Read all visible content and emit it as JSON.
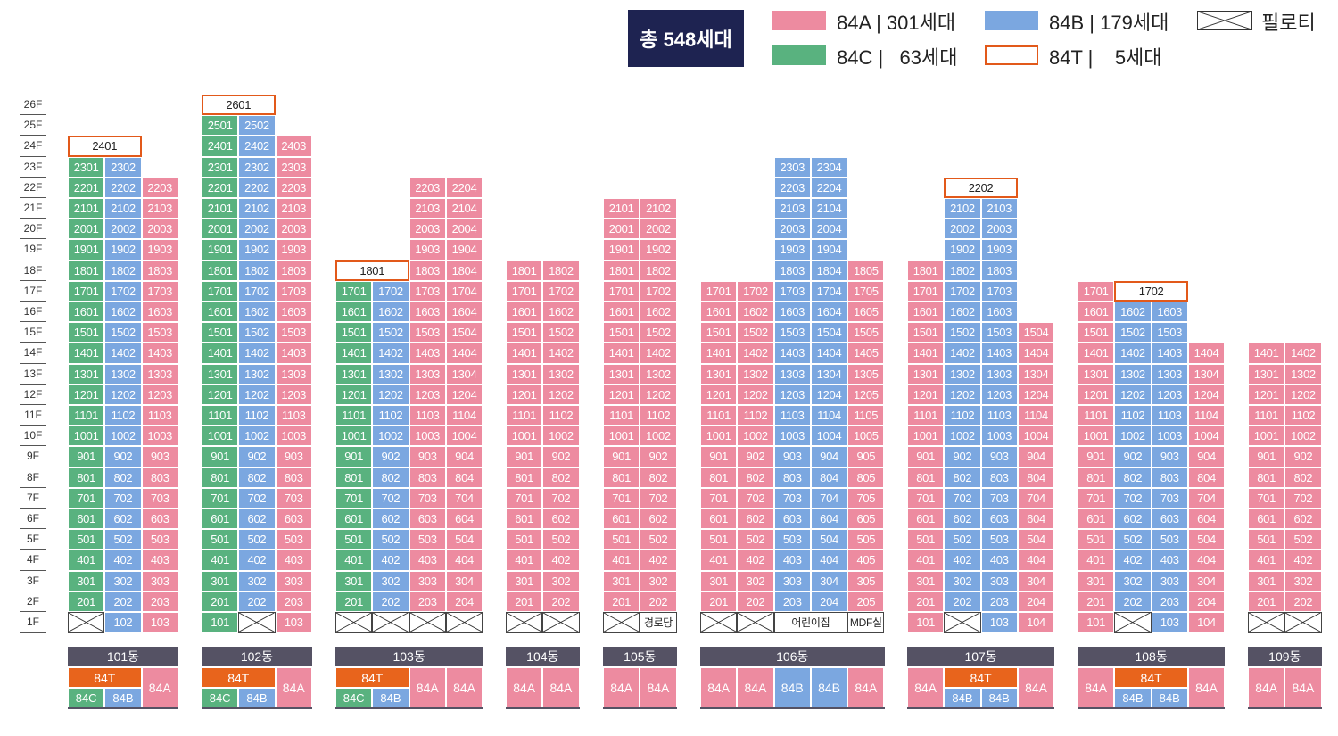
{
  "legend": {
    "total": "총 548세대",
    "items": [
      {
        "type": "84A",
        "sep": "|",
        "count": "301세대",
        "color": "#ed8ba0"
      },
      {
        "type": "84B",
        "sep": "|",
        "count": "179세대",
        "color": "#7ba7e0"
      },
      {
        "type": "84C",
        "sep": "|",
        "count": "63세대",
        "color": "#59b27f"
      },
      {
        "type": "84T",
        "sep": "|",
        "count": "5세대",
        "color": "#e2591a"
      }
    ],
    "piloti": "필로티"
  },
  "floors": [
    "1F",
    "2F",
    "3F",
    "4F",
    "5F",
    "6F",
    "7F",
    "8F",
    "9F",
    "10F",
    "11F",
    "12F",
    "13F",
    "14F",
    "15F",
    "16F",
    "17F",
    "18F",
    "19F",
    "20F",
    "21F",
    "22F",
    "23F",
    "24F",
    "25F",
    "26F"
  ],
  "buildings": [
    {
      "name": "101동",
      "columns": [
        {
          "units": {
            "1": "L",
            "2-23": "C"
          },
          "special": {
            "24": {
              "kind": "T",
              "label": "2401",
              "span": 2
            }
          }
        },
        {
          "units": {
            "1-23": "B"
          }
        },
        {
          "units": {
            "1-22": "A"
          }
        }
      ],
      "types": [
        [
          "84T",
          "84C",
          "84B"
        ],
        "84A"
      ]
    },
    {
      "name": "102동",
      "columns": [
        {
          "units": {
            "1-25": "C"
          },
          "special": {
            "26": {
              "kind": "T",
              "label": "2601",
              "span": 2
            }
          }
        },
        {
          "units": {
            "1": "L",
            "2-25": "B"
          }
        },
        {
          "units": {
            "1-24": "A"
          }
        }
      ],
      "types": [
        [
          "84T",
          "84C",
          "84B"
        ],
        "84A"
      ]
    },
    {
      "name": "103동",
      "columns": [
        {
          "units": {
            "1": "L",
            "2-17": "C"
          },
          "special": {
            "18": {
              "kind": "T",
              "label": "1801",
              "span": 2
            }
          }
        },
        {
          "units": {
            "1": "L",
            "2-17": "B"
          }
        },
        {
          "units": {
            "1": "L",
            "2-22": "A"
          }
        },
        {
          "units": {
            "1": "L",
            "2-22": "A"
          }
        }
      ],
      "types": [
        [
          "84T",
          "84C",
          "84B"
        ],
        "84A",
        "84A"
      ]
    },
    {
      "name": "104동",
      "columns": [
        {
          "units": {
            "1": "L",
            "2-18": "A"
          }
        },
        {
          "units": {
            "1": "L",
            "2-18": "A"
          }
        }
      ],
      "types": [
        "84A",
        "84A"
      ]
    },
    {
      "name": "105동",
      "columns": [
        {
          "units": {
            "1": "L",
            "2-21": "A"
          }
        },
        {
          "units": {
            "1": "S:경로당",
            "2-21": "A"
          }
        }
      ],
      "types": [
        "84A",
        "84A"
      ]
    },
    {
      "name": "106동",
      "columns": [
        {
          "units": {
            "1": "L",
            "2-17": "A"
          }
        },
        {
          "units": {
            "1": "L",
            "2-17": "A"
          }
        },
        {
          "units": {
            "1": "S2:어린이집",
            "2-23": "B"
          }
        },
        {
          "units": {
            "2-23": "B"
          }
        },
        {
          "units": {
            "1": "S:MDF실",
            "2-18": "A"
          }
        }
      ],
      "types": [
        "84A",
        "84A",
        "84B",
        "84B",
        "84A"
      ]
    },
    {
      "name": "107동",
      "columns": [
        {
          "units": {
            "1-18": "A"
          }
        },
        {
          "units": {
            "1": "L",
            "2-21": "B"
          },
          "special": {
            "22": {
              "kind": "T",
              "label": "2202",
              "span": 2
            }
          }
        },
        {
          "units": {
            "1-21": "B"
          }
        },
        {
          "units": {
            "1-15": "A"
          }
        }
      ],
      "types": [
        "84A",
        [
          "84T",
          "84B",
          "84B"
        ],
        "84A"
      ]
    },
    {
      "name": "108동",
      "columns": [
        {
          "units": {
            "1-17": "A"
          }
        },
        {
          "units": {
            "1": "L",
            "2-16": "B"
          },
          "special": {
            "17": {
              "kind": "T",
              "label": "1702",
              "span": 2
            }
          }
        },
        {
          "units": {
            "1-16": "B"
          }
        },
        {
          "units": {
            "1-14": "A"
          }
        }
      ],
      "types": [
        "84A",
        [
          "84T",
          "84B",
          "84B"
        ],
        "84A"
      ]
    },
    {
      "name": "109동",
      "columns": [
        {
          "units": {
            "1": "L",
            "2-14": "A"
          }
        },
        {
          "units": {
            "1": "L",
            "2-14": "A"
          }
        }
      ],
      "types": [
        "84A",
        "84A"
      ]
    }
  ]
}
